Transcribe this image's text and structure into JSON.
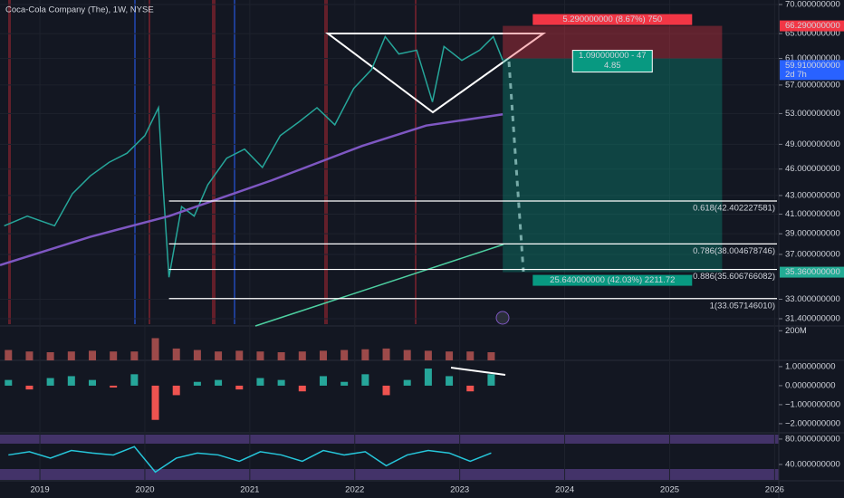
{
  "chart_data": [
    {
      "type": "line",
      "title": "Coca-Cola Company (The), 1W, NYSE",
      "log_scale": true,
      "grid": true,
      "xlim": [
        2018.62,
        2026.04
      ],
      "xticks": [
        2019,
        2020,
        2021,
        2022,
        2023,
        2024,
        2025,
        2026
      ],
      "ylim": [
        31.4,
        70
      ],
      "yticks": [
        {
          "value": 70,
          "label": "70.000000000"
        },
        {
          "value": 65,
          "label": "65.000000000"
        },
        {
          "value": 61,
          "label": "61.000000000"
        },
        {
          "value": 57,
          "label": "57.000000000"
        },
        {
          "value": 53,
          "label": "53.000000000"
        },
        {
          "value": 49,
          "label": "49.000000000"
        },
        {
          "value": 46,
          "label": "46.000000000"
        },
        {
          "value": 43,
          "label": "43.000000000"
        },
        {
          "value": 41,
          "label": "41.000000000"
        },
        {
          "value": 39,
          "label": "39.000000000"
        },
        {
          "value": 37,
          "label": "37.000000000"
        },
        {
          "value": 33,
          "label": "33.000000000"
        },
        {
          "value": 31.4,
          "label": "31.400000000"
        }
      ],
      "series": [
        {
          "color": "#26a69a",
          "x": [
            2018.66,
            2018.88,
            2019.14,
            2019.31,
            2019.48,
            2019.66,
            2019.83,
            2020.0,
            2020.13,
            2020.17,
            2020.23,
            2020.35,
            2020.47,
            2020.6,
            2020.78,
            2020.95,
            2021.12,
            2021.29,
            2021.47,
            2021.64,
            2021.81,
            2021.99,
            2022.16,
            2022.29,
            2022.42,
            2022.59,
            2022.74,
            2022.85,
            2023.02,
            2023.19,
            2023.32,
            2023.41
          ],
          "values": [
            39.8,
            40.8,
            39.8,
            43.2,
            45.2,
            46.8,
            47.9,
            50.1,
            53.8,
            44.7,
            34.9,
            41.8,
            40.8,
            44.2,
            47.3,
            48.4,
            46.2,
            50.1,
            51.9,
            53.8,
            51.5,
            56.5,
            59.3,
            64.5,
            61.7,
            62.3,
            54.6,
            62.9,
            60.7,
            62.3,
            64.5,
            60.7
          ]
        },
        {
          "color": "#7e57c2",
          "x": [
            2018.62,
            2019.48,
            2020.23,
            2021.21,
            2022.07,
            2022.68,
            2023.41
          ],
          "values": [
            36.0,
            38.7,
            40.8,
            44.7,
            48.8,
            51.4,
            52.9
          ]
        }
      ],
      "fib_levels": [
        {
          "value": 42.402227581,
          "label": "0.618(42.402227581)"
        },
        {
          "value": 38.004678746,
          "label": "0.786(38.004678746)"
        },
        {
          "value": 35.606766082,
          "label": "0.886(35.606766082)"
        },
        {
          "value": 33.05714601,
          "label": "1(33.057146010)"
        }
      ],
      "fib_start": 2020.23,
      "position": {
        "entry": 61,
        "stop": 66.29,
        "target": 35.36,
        "x_start": 2023.41,
        "x_end": 2025.5,
        "stop_label": "5.290000000 (8.67%) 750",
        "entry_labels": [
          "1.090000000 - 47",
          "4.85"
        ],
        "target_label": "25.640000000 (42.03%) 2211.72"
      },
      "axis_badges": [
        {
          "value": 66.29,
          "label": "66.290000000",
          "color": "#f23645"
        },
        {
          "value": 59.91,
          "label": "59.910000000",
          "color": "#2962ff",
          "countdown": "2d 7h"
        },
        {
          "value": 35.36,
          "label": "35.360000000",
          "color": "#22ab94"
        }
      ]
    },
    {
      "type": "bar",
      "color": "#9c4a4a",
      "ylim": [
        0,
        220
      ],
      "yticks": [
        {
          "value": 200,
          "label": "200M"
        }
      ],
      "x": [
        2018.7,
        2018.9,
        2019.1,
        2019.3,
        2019.5,
        2019.7,
        2019.9,
        2020.1,
        2020.3,
        2020.5,
        2020.7,
        2020.9,
        2021.1,
        2021.3,
        2021.5,
        2021.7,
        2021.9,
        2022.1,
        2022.3,
        2022.5,
        2022.7,
        2022.9,
        2023.1,
        2023.3
      ],
      "values": [
        70,
        60,
        55,
        60,
        65,
        60,
        60,
        150,
        80,
        70,
        60,
        65,
        60,
        55,
        60,
        65,
        70,
        75,
        80,
        70,
        65,
        60,
        60,
        55
      ]
    },
    {
      "type": "bar",
      "colors": {
        "up": "#26a69a",
        "down": "#ef5350"
      },
      "ylim": [
        -2.48,
        1.33
      ],
      "yticks": [
        {
          "value": 1,
          "label": "1.000000000"
        },
        {
          "value": 0,
          "label": "0.000000000"
        },
        {
          "value": -1,
          "label": "−1.000000000"
        },
        {
          "value": -2,
          "label": "−2.000000000"
        }
      ],
      "x": [
        2018.7,
        2018.9,
        2019.1,
        2019.3,
        2019.5,
        2019.7,
        2019.9,
        2020.1,
        2020.3,
        2020.5,
        2020.7,
        2020.9,
        2021.1,
        2021.3,
        2021.5,
        2021.7,
        2021.9,
        2022.1,
        2022.3,
        2022.5,
        2022.7,
        2022.9,
        2023.1,
        2023.3
      ],
      "values": [
        0.3,
        -0.2,
        0.4,
        0.5,
        0.3,
        -0.1,
        0.6,
        -1.8,
        -0.5,
        0.2,
        0.3,
        -0.2,
        0.4,
        0.3,
        -0.3,
        0.5,
        0.2,
        0.6,
        -0.5,
        0.3,
        0.9,
        0.5,
        -0.3,
        0.6
      ]
    },
    {
      "type": "line",
      "color": "#26c6da",
      "ylim": [
        15.7,
        87
      ],
      "yticks": [
        {
          "value": 80,
          "label": "80.000000000"
        },
        {
          "value": 40,
          "label": "40.000000000"
        }
      ],
      "x": [
        2018.7,
        2018.9,
        2019.1,
        2019.3,
        2019.5,
        2019.7,
        2019.9,
        2020.1,
        2020.3,
        2020.5,
        2020.7,
        2020.9,
        2021.1,
        2021.3,
        2021.5,
        2021.7,
        2021.9,
        2022.1,
        2022.3,
        2022.5,
        2022.7,
        2022.9,
        2023.1,
        2023.3
      ],
      "values": [
        55,
        60,
        50,
        62,
        58,
        55,
        68,
        28,
        50,
        58,
        55,
        45,
        60,
        55,
        45,
        62,
        55,
        60,
        38,
        55,
        62,
        58,
        45,
        58
      ]
    }
  ]
}
